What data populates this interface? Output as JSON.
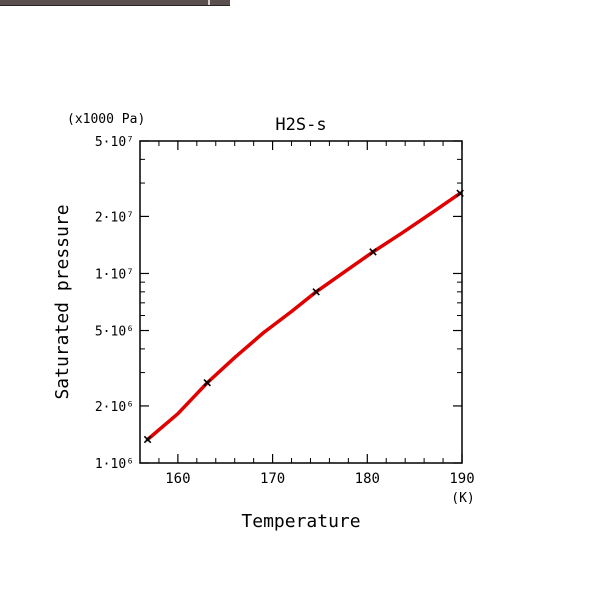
{
  "chart_data": {
    "type": "line",
    "title": "H2S-s",
    "xlabel": "Temperature",
    "xunit": "(K)",
    "ylabel": "Saturated pressure",
    "yunit": "(x1000 Pa)",
    "xlim": [
      156,
      190
    ],
    "ylim": [
      1000000,
      50000000
    ],
    "yscale": "log",
    "x_ticks": [
      {
        "value": 160,
        "label": "160"
      },
      {
        "value": 170,
        "label": "170"
      },
      {
        "value": 180,
        "label": "180"
      },
      {
        "value": 190,
        "label": "190"
      }
    ],
    "y_ticks": [
      {
        "value": 1000000,
        "label": "1·10⁶"
      },
      {
        "value": 2000000,
        "label": "2·10⁶"
      },
      {
        "value": 5000000,
        "label": "5·10⁶"
      },
      {
        "value": 10000000,
        "label": "1·10⁷"
      },
      {
        "value": 20000000,
        "label": "2·10⁷"
      },
      {
        "value": 50000000,
        "label": "5·10⁷"
      }
    ],
    "curve": {
      "color": "#e00000",
      "x": [
        156.8,
        160,
        163.1,
        166,
        169,
        172,
        174.6,
        177.6,
        180.6,
        183.7,
        186.7,
        189.8
      ],
      "y": [
        1330000,
        1820000,
        2650000,
        3600000,
        4850000,
        6300000,
        8000000,
        10200000,
        13000000,
        16400000,
        20700000,
        26500000
      ]
    },
    "points": {
      "marker": "x",
      "color": "#000000",
      "x": [
        156.8,
        163.1,
        174.6,
        180.6,
        189.8
      ],
      "y": [
        1330000,
        2650000,
        8000000,
        13000000,
        26500000
      ]
    },
    "grid": false,
    "legend": "none"
  }
}
